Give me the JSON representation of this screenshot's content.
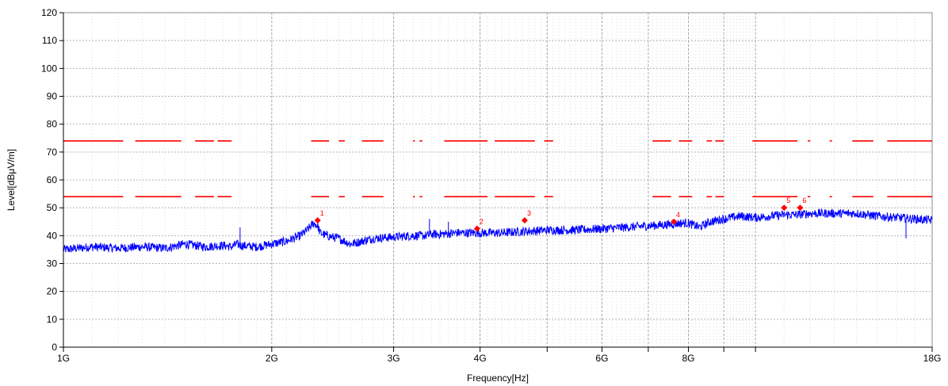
{
  "chart_data": {
    "type": "line",
    "title": "",
    "xlabel": "Frequency[Hz]",
    "ylabel": "Level[dBμV/m]",
    "x_scale": "log",
    "xlim": [
      1,
      18
    ],
    "x_unit": "GHz",
    "ylim": [
      0,
      120
    ],
    "y_ticks": [
      0,
      10,
      20,
      30,
      40,
      50,
      60,
      70,
      80,
      90,
      100,
      110,
      120
    ],
    "x_tick_labels": [
      {
        "x": 1,
        "label": "1G"
      },
      {
        "x": 2,
        "label": "2G"
      },
      {
        "x": 3,
        "label": "3G"
      },
      {
        "x": 4,
        "label": "4G"
      },
      {
        "x": 6,
        "label": "6G"
      },
      {
        "x": 8,
        "label": "8G"
      },
      {
        "x": 18,
        "label": "18G"
      }
    ],
    "x_major_unlabeled": [
      5,
      7,
      9,
      10
    ],
    "grid": true,
    "legend": "none",
    "series": [
      {
        "color": "#0000ff",
        "x": [
          1.0,
          1.05,
          1.1,
          1.2,
          1.3,
          1.4,
          1.5,
          1.6,
          1.7,
          1.75,
          1.78,
          1.8,
          1.9,
          2.0,
          2.1,
          2.2,
          2.25,
          2.3,
          2.33,
          2.35,
          2.4,
          2.5,
          2.6,
          2.7,
          2.8,
          3.0,
          3.2,
          3.35,
          3.4,
          3.5,
          3.7,
          4.0,
          4.3,
          4.6,
          5.0,
          5.5,
          6.0,
          6.5,
          7.0,
          7.5,
          7.8,
          8.0,
          8.3,
          8.6,
          9.0,
          9.5,
          10.0,
          10.5,
          11.0,
          11.5,
          12.0,
          13.0,
          14.0,
          15.0,
          16.0,
          17.0,
          18.0
        ],
        "values": [
          35,
          35.5,
          36,
          35.5,
          36,
          35.5,
          37,
          36,
          36.5,
          36,
          37,
          36.5,
          36,
          37,
          38,
          40,
          42,
          44.5,
          43.5,
          41,
          40,
          39,
          37,
          38,
          39,
          39.5,
          40,
          40,
          40.5,
          40.5,
          41,
          41,
          41,
          41.5,
          42,
          42,
          42.5,
          43,
          43.5,
          44,
          44.5,
          44.5,
          43,
          45,
          46,
          47,
          46.5,
          47,
          47.5,
          47.5,
          48,
          48,
          48,
          47,
          46.5,
          46,
          45.5
        ]
      }
    ],
    "spikes": [
      {
        "x": 1.8,
        "y": 43
      },
      {
        "x": 3.38,
        "y": 46
      },
      {
        "x": 3.6,
        "y": 45
      },
      {
        "x": 16.5,
        "y": 39
      }
    ],
    "limit_lines": [
      {
        "color": "#ff0000",
        "level": 74,
        "segments": [
          [
            1.0,
            1.22
          ],
          [
            1.27,
            1.48
          ],
          [
            1.55,
            1.65
          ],
          [
            1.67,
            1.75
          ],
          [
            2.28,
            2.42
          ],
          [
            2.5,
            2.55
          ],
          [
            2.7,
            2.9
          ],
          [
            3.2,
            3.22
          ],
          [
            3.27,
            3.3
          ],
          [
            3.55,
            4.1
          ],
          [
            4.2,
            4.8
          ],
          [
            4.95,
            5.1
          ],
          [
            7.1,
            7.55
          ],
          [
            7.75,
            8.1
          ],
          [
            8.5,
            8.65
          ],
          [
            8.75,
            9.0
          ],
          [
            9.9,
            11.5
          ],
          [
            11.9,
            12.0
          ],
          [
            12.8,
            12.9
          ],
          [
            13.8,
            14.8
          ],
          [
            15.5,
            18.0
          ]
        ]
      },
      {
        "color": "#ff0000",
        "level": 54,
        "segments": [
          [
            1.0,
            1.22
          ],
          [
            1.27,
            1.48
          ],
          [
            1.55,
            1.65
          ],
          [
            1.67,
            1.75
          ],
          [
            2.28,
            2.42
          ],
          [
            2.5,
            2.55
          ],
          [
            2.7,
            2.9
          ],
          [
            3.2,
            3.22
          ],
          [
            3.27,
            3.3
          ],
          [
            3.55,
            4.1
          ],
          [
            4.2,
            4.8
          ],
          [
            4.95,
            5.1
          ],
          [
            7.1,
            7.55
          ],
          [
            7.75,
            8.1
          ],
          [
            8.5,
            8.65
          ],
          [
            8.75,
            9.0
          ],
          [
            9.9,
            11.5
          ],
          [
            11.9,
            12.0
          ],
          [
            12.8,
            12.9
          ],
          [
            13.8,
            14.8
          ],
          [
            15.5,
            18.0
          ]
        ]
      }
    ],
    "markers": [
      {
        "label": "1",
        "x": 2.33,
        "y": 45.5
      },
      {
        "label": "2",
        "x": 3.96,
        "y": 42.5
      },
      {
        "label": "3",
        "x": 4.64,
        "y": 45.5
      },
      {
        "label": "4",
        "x": 7.62,
        "y": 45.0
      },
      {
        "label": "5",
        "x": 11.0,
        "y": 50.0
      },
      {
        "label": "6",
        "x": 11.6,
        "y": 50.0
      }
    ]
  }
}
